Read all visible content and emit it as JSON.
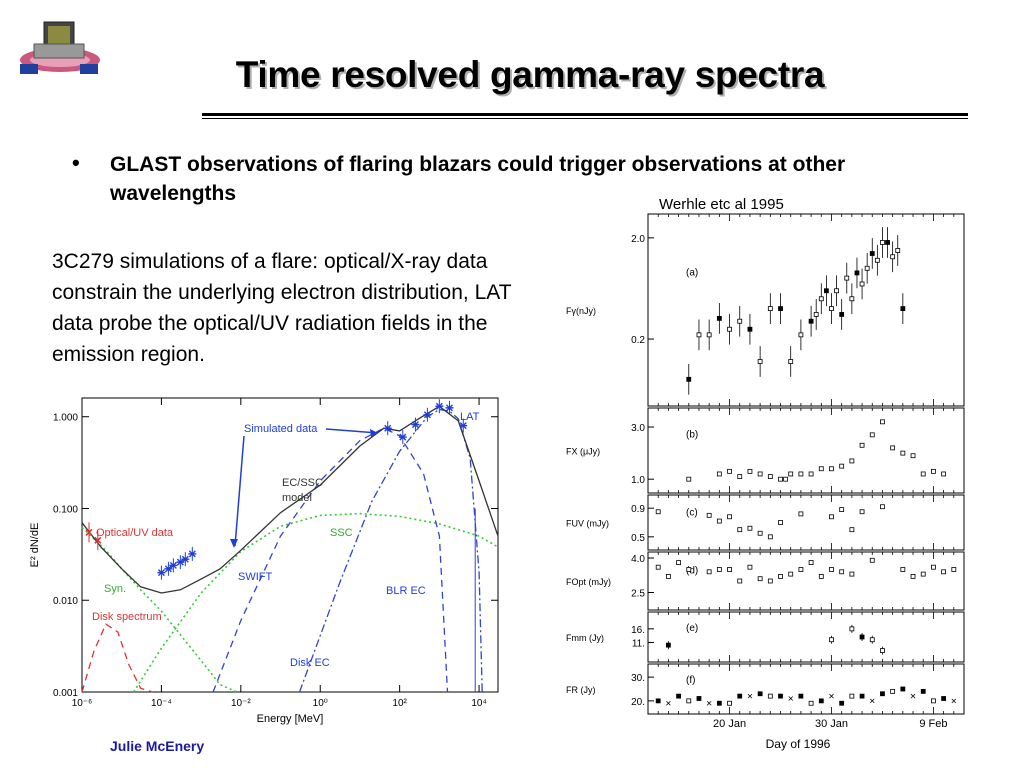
{
  "slide": {
    "title": "Time resolved gamma-ray spectra",
    "bullet": "GLAST observations of flaring blazars could trigger observations at other wavelengths",
    "bullet_marker": "•",
    "citation": "Werhle etc al 1995",
    "description": "3C279 simulations of a flare: optical/X-ray data constrain the underlying electron distribution, LAT data probe the optical/UV radiation fields in the emission region.",
    "footer": "Julie McEnery",
    "logo_icon": "glast-satellite-icon"
  },
  "colors": {
    "footer": "#1a1aa0",
    "annotation_blue": "#1f3fd8",
    "ssc_green": "#33cc33",
    "disk_red": "#dd3333"
  },
  "chart_data": [
    {
      "type": "line",
      "xlabel": "Energy [MeV]",
      "ylabel": "E² dN/dE",
      "x_scale": "log",
      "y_scale": "log",
      "xlim": [
        1e-06,
        30000
      ],
      "ylim": [
        0.001,
        1.6
      ],
      "xticks": [
        "10⁻⁶",
        "10⁻⁴",
        "10⁻²",
        "10⁰",
        "10²",
        "10⁴"
      ],
      "xtick_values": [
        1e-06,
        0.0001,
        0.01,
        1,
        100,
        10000
      ],
      "yticks": [
        "0.001",
        "0.010",
        "0.100",
        "1.000"
      ],
      "ytick_values": [
        0.001,
        0.01,
        0.1,
        1.0
      ],
      "grid": false,
      "series": [
        {
          "name": "Disk spectrum",
          "style": "dashed",
          "color": "#dd3333",
          "x": [
            1e-06,
            2e-06,
            4e-06,
            8e-06,
            1.5e-05,
            3e-05,
            6e-05
          ],
          "y": [
            0.001,
            0.0028,
            0.0055,
            0.0045,
            0.002,
            0.0011,
            0.001
          ]
        },
        {
          "name": "Syn.",
          "style": "dotted",
          "color": "#33cc33",
          "x": [
            1e-06,
            4e-06,
            1e-05,
            3e-05,
            0.0001,
            0.0003,
            0.001,
            0.003,
            0.008
          ],
          "y": [
            0.062,
            0.035,
            0.022,
            0.013,
            0.0076,
            0.0042,
            0.0022,
            0.0012,
            0.001
          ]
        },
        {
          "name": "SSC",
          "style": "dotted",
          "color": "#33cc33",
          "x": [
            2e-05,
            0.0001,
            0.001,
            0.01,
            0.1,
            1,
            10,
            100,
            1000,
            10000,
            30000
          ],
          "y": [
            0.001,
            0.003,
            0.012,
            0.034,
            0.064,
            0.084,
            0.088,
            0.082,
            0.068,
            0.05,
            0.038
          ]
        },
        {
          "name": "Disk EC",
          "style": "dashed",
          "color": "#3344cc",
          "x": [
            0.002,
            0.01,
            0.1,
            1,
            10,
            40,
            100,
            400,
            1000,
            1600
          ],
          "y": [
            0.001,
            0.006,
            0.05,
            0.2,
            0.55,
            0.75,
            0.62,
            0.24,
            0.05,
            0.001
          ]
        },
        {
          "name": "BLR EC",
          "style": "dashdot",
          "color": "#3344cc",
          "x": [
            0.3,
            3,
            20,
            100,
            500,
            1000,
            1800,
            3000,
            6000,
            10000,
            12000
          ],
          "y": [
            0.001,
            0.015,
            0.12,
            0.42,
            1.0,
            1.2,
            1.15,
            0.95,
            0.35,
            0.02,
            0.001
          ]
        },
        {
          "name": "EC/SSC model",
          "style": "solid",
          "color": "#333333",
          "x": [
            1e-06,
            3e-06,
            1e-05,
            3e-05,
            0.0001,
            0.0003,
            0.001,
            0.003,
            0.01,
            0.1,
            1,
            10,
            40,
            100,
            300,
            1000,
            3000,
            10000,
            30000
          ],
          "y": [
            0.07,
            0.038,
            0.022,
            0.014,
            0.012,
            0.013,
            0.017,
            0.022,
            0.035,
            0.09,
            0.18,
            0.48,
            0.75,
            0.7,
            0.95,
            1.3,
            0.9,
            0.2,
            0.05
          ]
        }
      ],
      "points": [
        {
          "name": "Simulated data",
          "marker": "asterisk",
          "color": "#1f3fd8",
          "x": [
            0.0001,
            0.00015,
            0.0002,
            0.0003,
            0.0004,
            0.0006,
            50,
            120,
            250,
            500,
            1000,
            1800,
            4000
          ],
          "y": [
            0.02,
            0.022,
            0.024,
            0.026,
            0.028,
            0.032,
            0.75,
            0.6,
            0.82,
            1.05,
            1.3,
            1.25,
            0.8
          ]
        },
        {
          "name": "Optical/UV data",
          "marker": "cross",
          "color": "#dd3333",
          "x": [
            1.5e-06,
            2.5e-06
          ],
          "y": [
            0.055,
            0.045
          ]
        }
      ],
      "vline": {
        "x": 8000,
        "color": "#3344cc"
      },
      "annotations": [
        {
          "text": "Simulated data",
          "color": "#1f3fd8"
        },
        {
          "text": "LAT",
          "color": "#1f3fd8"
        },
        {
          "text": "EC/SSC",
          "color": "#333333"
        },
        {
          "text": "model",
          "color": "#333333"
        },
        {
          "text": "Optical/UV data",
          "color": "#dd3333"
        },
        {
          "text": "SSC",
          "color": "#33aa33"
        },
        {
          "text": "Syn.",
          "color": "#33aa33"
        },
        {
          "text": "Disk spectrum",
          "color": "#dd3333"
        },
        {
          "text": "SWIFT",
          "color": "#1f3fd8"
        },
        {
          "text": "BLR EC",
          "color": "#1f3fd8"
        },
        {
          "text": "Disk EC",
          "color": "#1f3fd8"
        }
      ]
    },
    {
      "type": "scatter",
      "xlabel": "Day of 1996",
      "xticks": [
        "20 Jan",
        "30 Jan",
        "9 Feb"
      ],
      "xtick_days": [
        20,
        30,
        40
      ],
      "xlim": [
        12,
        43
      ],
      "panels": [
        {
          "label": "(a)",
          "ylabel": "Fγ(nJy)",
          "y_scale": "log",
          "ylim": [
            0.05,
            3.0
          ],
          "yticks": [
            "2.0",
            "0.2"
          ],
          "ytick_values": [
            2.0,
            0.2
          ],
          "x": [
            16,
            17,
            18,
            19,
            20,
            21,
            22,
            23,
            24,
            25,
            26,
            27,
            28,
            28.5,
            29,
            29.5,
            30,
            30.5,
            31,
            31.5,
            32,
            32.5,
            33,
            33.5,
            34,
            34.5,
            35,
            35.5,
            36,
            36.5,
            37
          ],
          "y": [
            0.08,
            0.22,
            0.22,
            0.32,
            0.25,
            0.3,
            0.25,
            0.12,
            0.4,
            0.4,
            0.12,
            0.22,
            0.3,
            0.35,
            0.5,
            0.6,
            0.4,
            0.6,
            0.35,
            0.8,
            0.5,
            0.9,
            0.7,
            1.0,
            1.4,
            1.2,
            1.8,
            1.8,
            1.3,
            1.5,
            0.4
          ]
        },
        {
          "label": "(b)",
          "ylabel": "FX (μJy)",
          "y_scale": "linear",
          "ylim": [
            0.7,
            3.5
          ],
          "yticks": [
            "3.0",
            "1.0"
          ],
          "ytick_values": [
            3.0,
            1.0
          ],
          "x": [
            16,
            19,
            20,
            21,
            22,
            23,
            24,
            25,
            25.5,
            26,
            27,
            28,
            29,
            30,
            31,
            32,
            33,
            34,
            35,
            36,
            37,
            38,
            39,
            40,
            41
          ],
          "y": [
            1.0,
            1.2,
            1.3,
            1.1,
            1.3,
            1.2,
            1.1,
            1.0,
            1.0,
            1.2,
            1.2,
            1.2,
            1.4,
            1.4,
            1.5,
            1.7,
            2.3,
            2.7,
            3.2,
            2.2,
            2.0,
            1.9,
            1.2,
            1.3,
            1.2
          ]
        },
        {
          "label": "(c)",
          "ylabel": "FUV (mJy)",
          "y_scale": "linear",
          "ylim": [
            0.4,
            1.0
          ],
          "yticks": [
            "0.9",
            "0.5"
          ],
          "ytick_values": [
            0.9,
            0.5
          ],
          "x": [
            13,
            18,
            19,
            20,
            21,
            22,
            23,
            24,
            25,
            27,
            30,
            31,
            32,
            33,
            35
          ],
          "y": [
            0.85,
            0.8,
            0.72,
            0.78,
            0.6,
            0.62,
            0.55,
            0.5,
            0.7,
            0.82,
            0.78,
            0.88,
            0.6,
            0.85,
            0.92
          ]
        },
        {
          "label": "(d)",
          "ylabel": "FOpt (mJy)",
          "y_scale": "linear",
          "ylim": [
            2.0,
            4.0
          ],
          "yticks": [
            "4.0",
            "2.5"
          ],
          "ytick_values": [
            4.0,
            2.5
          ],
          "x": [
            13,
            14,
            15,
            16,
            18,
            19,
            20,
            21,
            22,
            23,
            24,
            25,
            26,
            27,
            28,
            29,
            30,
            31,
            32,
            34,
            37,
            38,
            39,
            40,
            41,
            42
          ],
          "y": [
            3.6,
            3.2,
            3.8,
            3.5,
            3.4,
            3.5,
            3.5,
            3.0,
            3.6,
            3.1,
            3.0,
            3.2,
            3.3,
            3.5,
            3.8,
            3.2,
            3.5,
            3.4,
            3.3,
            3.9,
            3.5,
            3.2,
            3.3,
            3.6,
            3.4,
            3.5
          ]
        },
        {
          "label": "(e)",
          "ylabel": "Fmm (Jy)",
          "y_scale": "linear",
          "ylim": [
            6.0,
            20.0
          ],
          "yticks": [
            "16.",
            "11."
          ],
          "ytick_values": [
            16,
            11
          ],
          "x": [
            14,
            30,
            32,
            33,
            34,
            35
          ],
          "y": [
            10,
            12,
            16,
            13,
            12,
            8
          ]
        },
        {
          "label": "(f)",
          "ylabel": "FR (Jy)",
          "y_scale": "linear",
          "ylim": [
            17,
            33
          ],
          "yticks": [
            "30.",
            "20."
          ],
          "ytick_values": [
            30,
            20
          ],
          "x": [
            13,
            14,
            15,
            16,
            17,
            18,
            19,
            20,
            21,
            22,
            23,
            24,
            25,
            26,
            27,
            28,
            29,
            30,
            31,
            32,
            33,
            34,
            35,
            36,
            37,
            38,
            39,
            40,
            41,
            42
          ],
          "y": [
            20,
            19,
            22,
            20,
            21,
            19,
            19,
            19,
            22,
            22,
            23,
            22,
            22,
            21,
            22,
            19,
            20,
            22,
            19,
            22,
            22,
            20,
            23,
            24,
            25,
            22,
            24,
            20,
            21,
            20
          ]
        }
      ]
    }
  ]
}
